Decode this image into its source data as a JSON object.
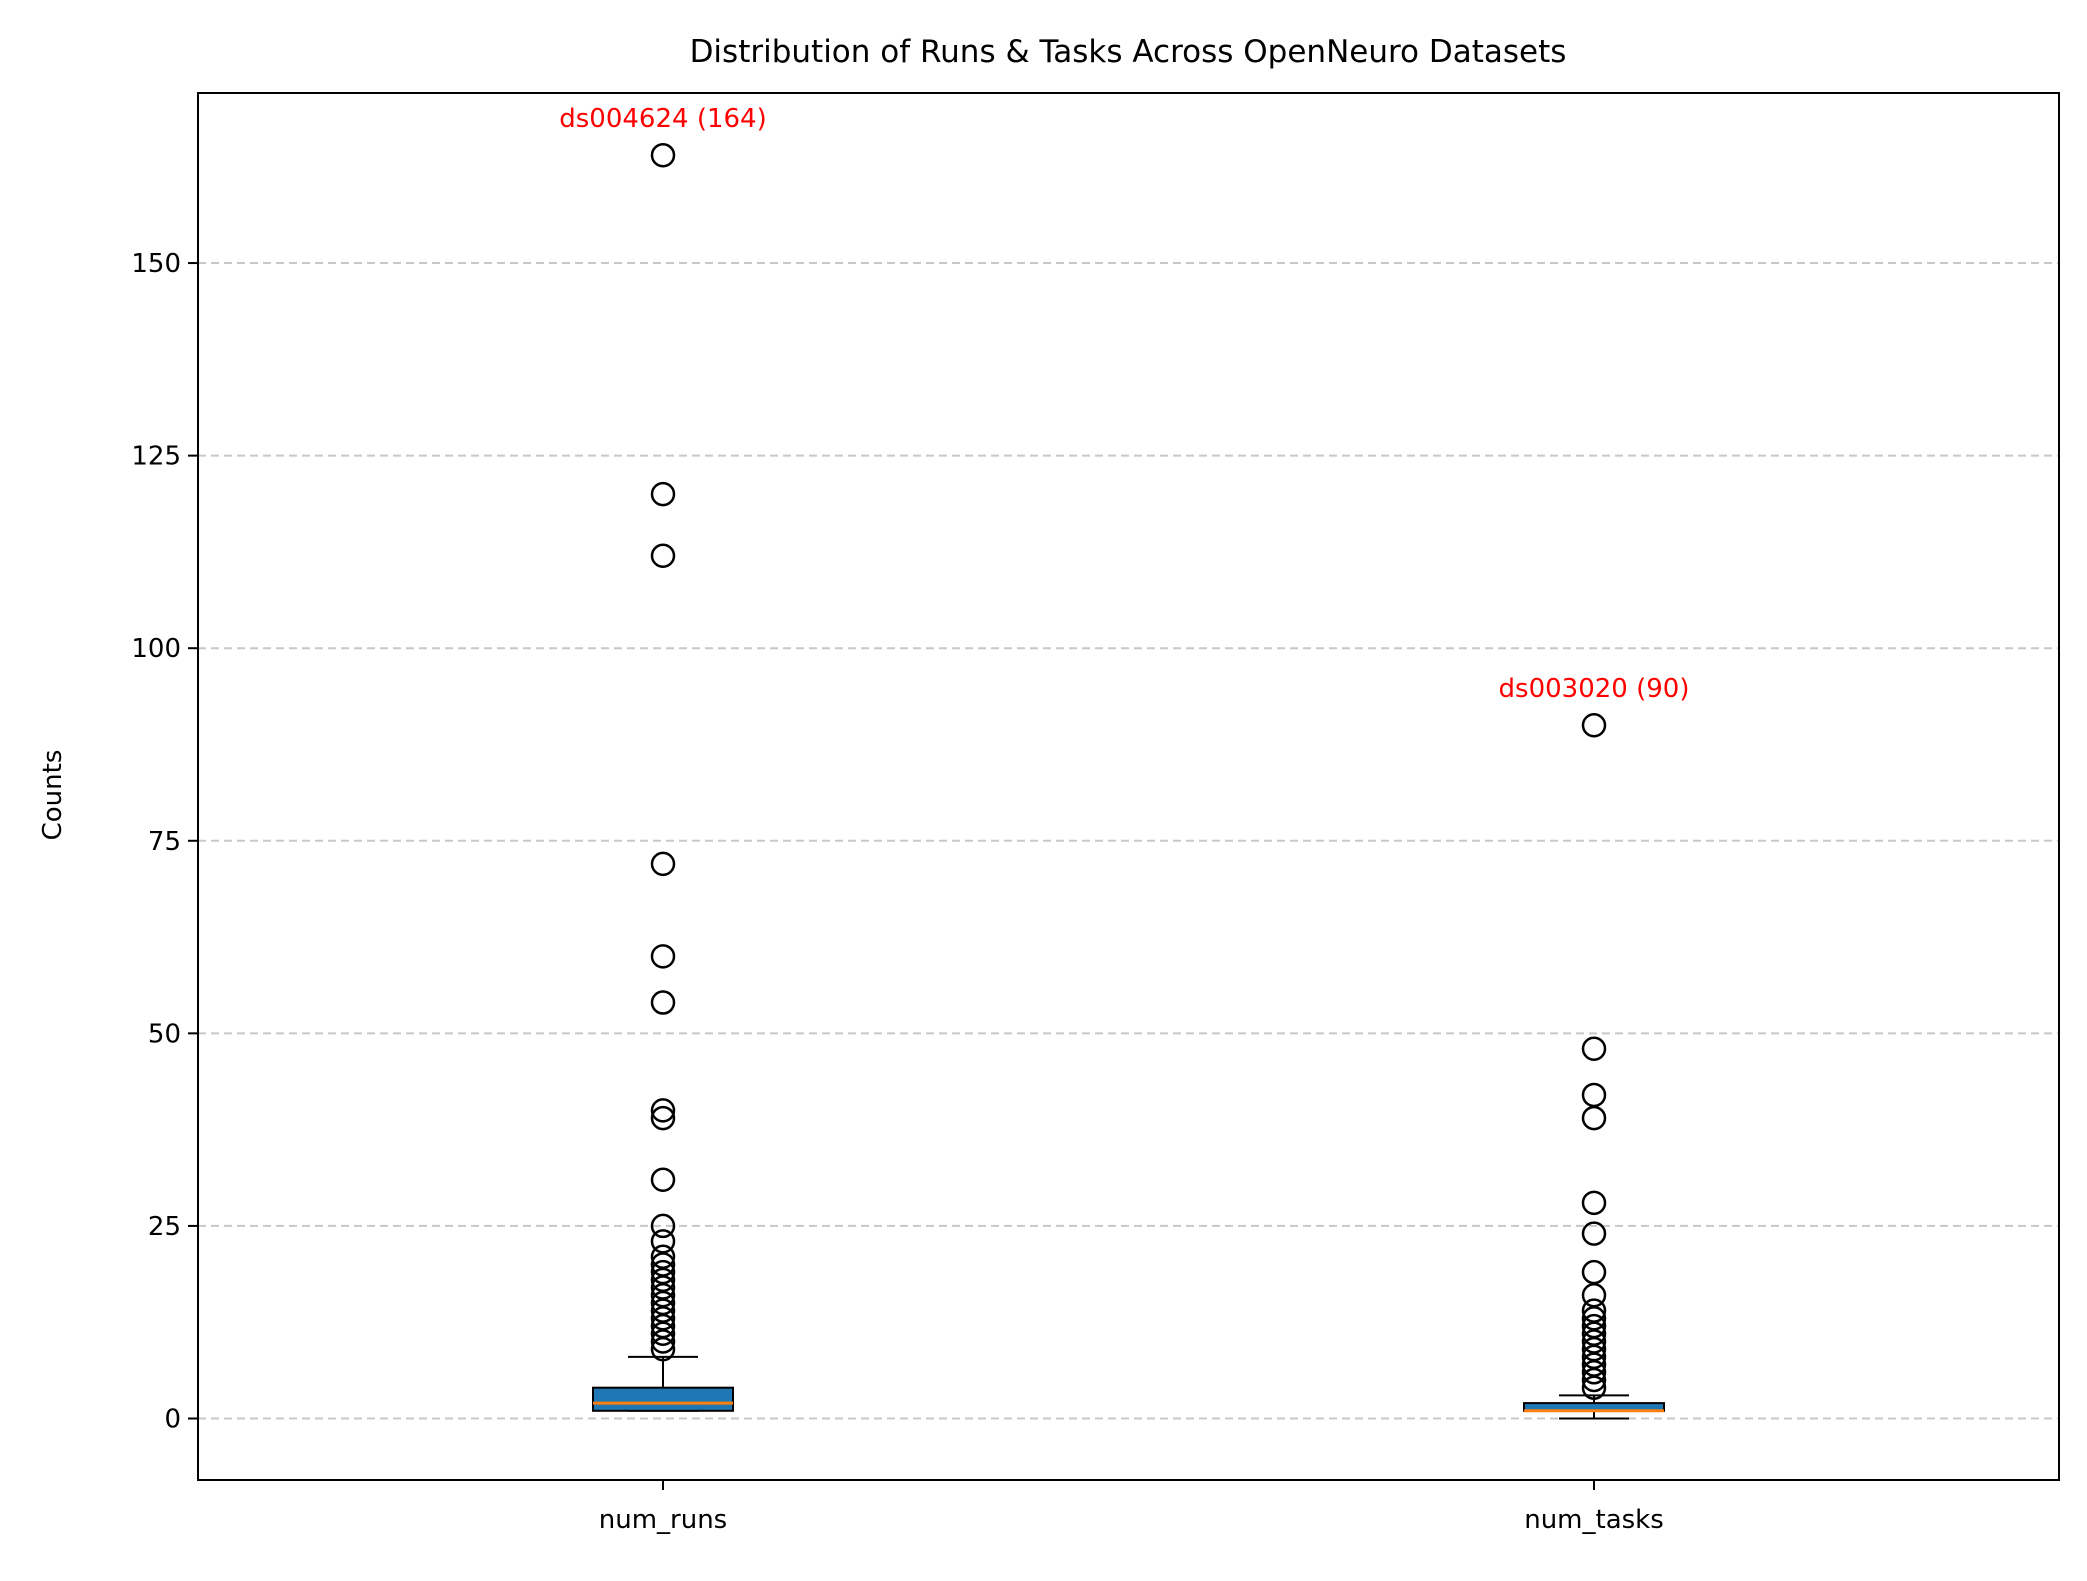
{
  "chart_data": {
    "type": "box",
    "title": "Distribution of Runs & Tasks Across OpenNeuro Datasets",
    "xlabel": "",
    "ylabel": "Counts",
    "ylim": [
      -8,
      170
    ],
    "yticks": [
      0,
      25,
      50,
      75,
      100,
      125,
      150
    ],
    "grid": "y, dashed",
    "categories": [
      "num_runs",
      "num_tasks"
    ],
    "series": [
      {
        "category": "num_runs",
        "whisker_low": 1,
        "q1": 1,
        "median": 2,
        "q3": 4,
        "whisker_high": 8,
        "outliers": [
          9,
          10,
          11,
          12,
          13,
          14,
          15,
          16,
          17,
          18,
          19,
          20,
          21,
          23,
          25,
          31,
          39,
          40,
          54,
          60,
          72,
          112,
          120,
          164
        ]
      },
      {
        "category": "num_tasks",
        "whisker_low": 0,
        "q1": 1,
        "median": 1,
        "q3": 2,
        "whisker_high": 3,
        "outliers": [
          4,
          5,
          6,
          7,
          8,
          9,
          10,
          11,
          12,
          13,
          14,
          16,
          19,
          24,
          28,
          39,
          42,
          48,
          90
        ]
      }
    ],
    "annotations": [
      {
        "text": "ds004624 (164)",
        "category": "num_runs",
        "y": 164,
        "color": "#ff0000"
      },
      {
        "text": "ds003020 (90)",
        "category": "num_tasks",
        "y": 90,
        "color": "#ff0000"
      }
    ],
    "colors": {
      "box_fill": "#1f77b4",
      "median": "#ff7f0e",
      "grid": "#c8c8c8",
      "annotation": "#ff0000"
    }
  }
}
